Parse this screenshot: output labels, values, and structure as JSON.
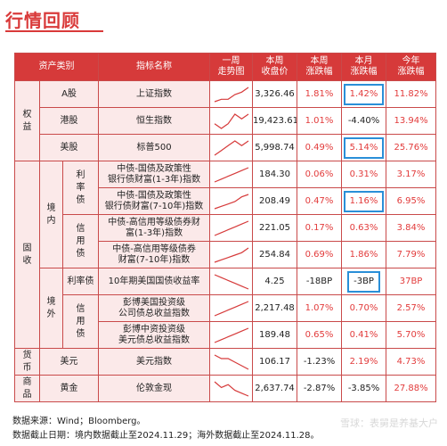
{
  "title": "行情回顾",
  "headers": [
    "资产类别",
    "指标名称",
    "一周\n走势图",
    "本周\n收盘价",
    "本周\n涨跌幅",
    "本月\n涨跌幅",
    "今年\n涨跌幅"
  ],
  "groups": {
    "equity": "权益",
    "fixed_income": "固收",
    "domestic": "境内",
    "overseas": "境外",
    "rate_bond": "利率债",
    "credit_bond": "信用债",
    "currency": "货币",
    "commodity": "商品"
  },
  "rows": [
    {
      "cat": "A股",
      "name": "上证指数",
      "close": "3,326.46",
      "week": "1.81%",
      "month": "1.42%",
      "ytd": "11.82%",
      "spark": [
        2,
        3,
        3,
        5,
        6,
        8
      ],
      "hl": true
    },
    {
      "cat": "港股",
      "name": "恒生指数",
      "close": "19,423.61",
      "week": "1.01%",
      "month": "-4.40%",
      "ytd": "13.94%",
      "spark": [
        4,
        3,
        4,
        6,
        5,
        6
      ],
      "hl": false
    },
    {
      "cat": "美股",
      "name": "标普500",
      "close": "5,998.74",
      "week": "0.49%",
      "month": "5.14%",
      "ytd": "25.76%",
      "spark": [
        3,
        4,
        5,
        6,
        5,
        6
      ],
      "hl": true
    },
    {
      "cat": "",
      "name": "中债-国债及政策性\n银行债财富(1-3年)指数",
      "close": "184.30",
      "week": "0.06%",
      "month": "0.31%",
      "ytd": "3.17%",
      "spark": [
        2,
        3,
        4,
        5,
        6,
        7
      ],
      "hl": false
    },
    {
      "cat": "",
      "name": "中债-国债及政策性\n银行债财富(7-10年)指数",
      "close": "208.49",
      "week": "0.47%",
      "month": "1.16%",
      "ytd": "6.95%",
      "spark": [
        2,
        3,
        4,
        5,
        7,
        8
      ],
      "hl": true
    },
    {
      "cat": "",
      "name": "中债-高信用等级债券财\n富(1-3年)指数",
      "close": "221.05",
      "week": "0.17%",
      "month": "0.63%",
      "ytd": "3.84%",
      "spark": [
        2,
        3,
        4,
        5,
        6,
        7
      ],
      "hl": false
    },
    {
      "cat": "",
      "name": "中债-高信用等级债券\n财富(7-10年)指数",
      "close": "254.84",
      "week": "0.69%",
      "month": "1.86%",
      "ytd": "7.79%",
      "spark": [
        2,
        3,
        4,
        5,
        6,
        8
      ],
      "hl": false
    },
    {
      "cat": "利率债",
      "name": "10年期美国国债收益率",
      "close": "4.25",
      "week": "-18BP",
      "month": "-3BP",
      "ytd": "37BP",
      "spark": [
        7,
        6,
        5,
        4,
        3,
        2
      ],
      "hl": true
    },
    {
      "cat": "",
      "name": "彭博美国投资级\n公司债总收益指数",
      "close": "2,217.48",
      "week": "1.07%",
      "month": "0.70%",
      "ytd": "2.57%",
      "spark": [
        2,
        3,
        4,
        5,
        6,
        7
      ],
      "hl": false
    },
    {
      "cat": "",
      "name": "彭博中资投资级\n美元债总收益指数",
      "close": "189.48",
      "week": "0.65%",
      "month": "0.41%",
      "ytd": "5.70%",
      "spark": [
        2,
        3,
        4,
        5,
        6,
        7
      ],
      "hl": false
    },
    {
      "cat": "美元",
      "name": "美元指数",
      "close": "106.17",
      "week": "-1.23%",
      "month": "2.19%",
      "ytd": "4.73%",
      "spark": [
        7,
        6,
        6,
        5,
        4,
        3
      ],
      "hl": false
    },
    {
      "cat": "黄金",
      "name": "伦敦金现",
      "close": "2,637.74",
      "week": "-2.87%",
      "month": "-3.85%",
      "ytd": "27.88%",
      "spark": [
        7,
        5,
        6,
        4,
        3,
        2
      ],
      "hl": false
    }
  ],
  "footer": {
    "source": "数据来源：Wind；Bloomberg。",
    "date": "数据截止日期：境内数据截止至2024.11.29；海外数据截止至2024.11.28。"
  },
  "watermark": "雪球：表舅是养基大户",
  "colors": {
    "accent": "#d63a3a",
    "highlight": "#2a8fd8",
    "pink": "#fbe9e9"
  }
}
